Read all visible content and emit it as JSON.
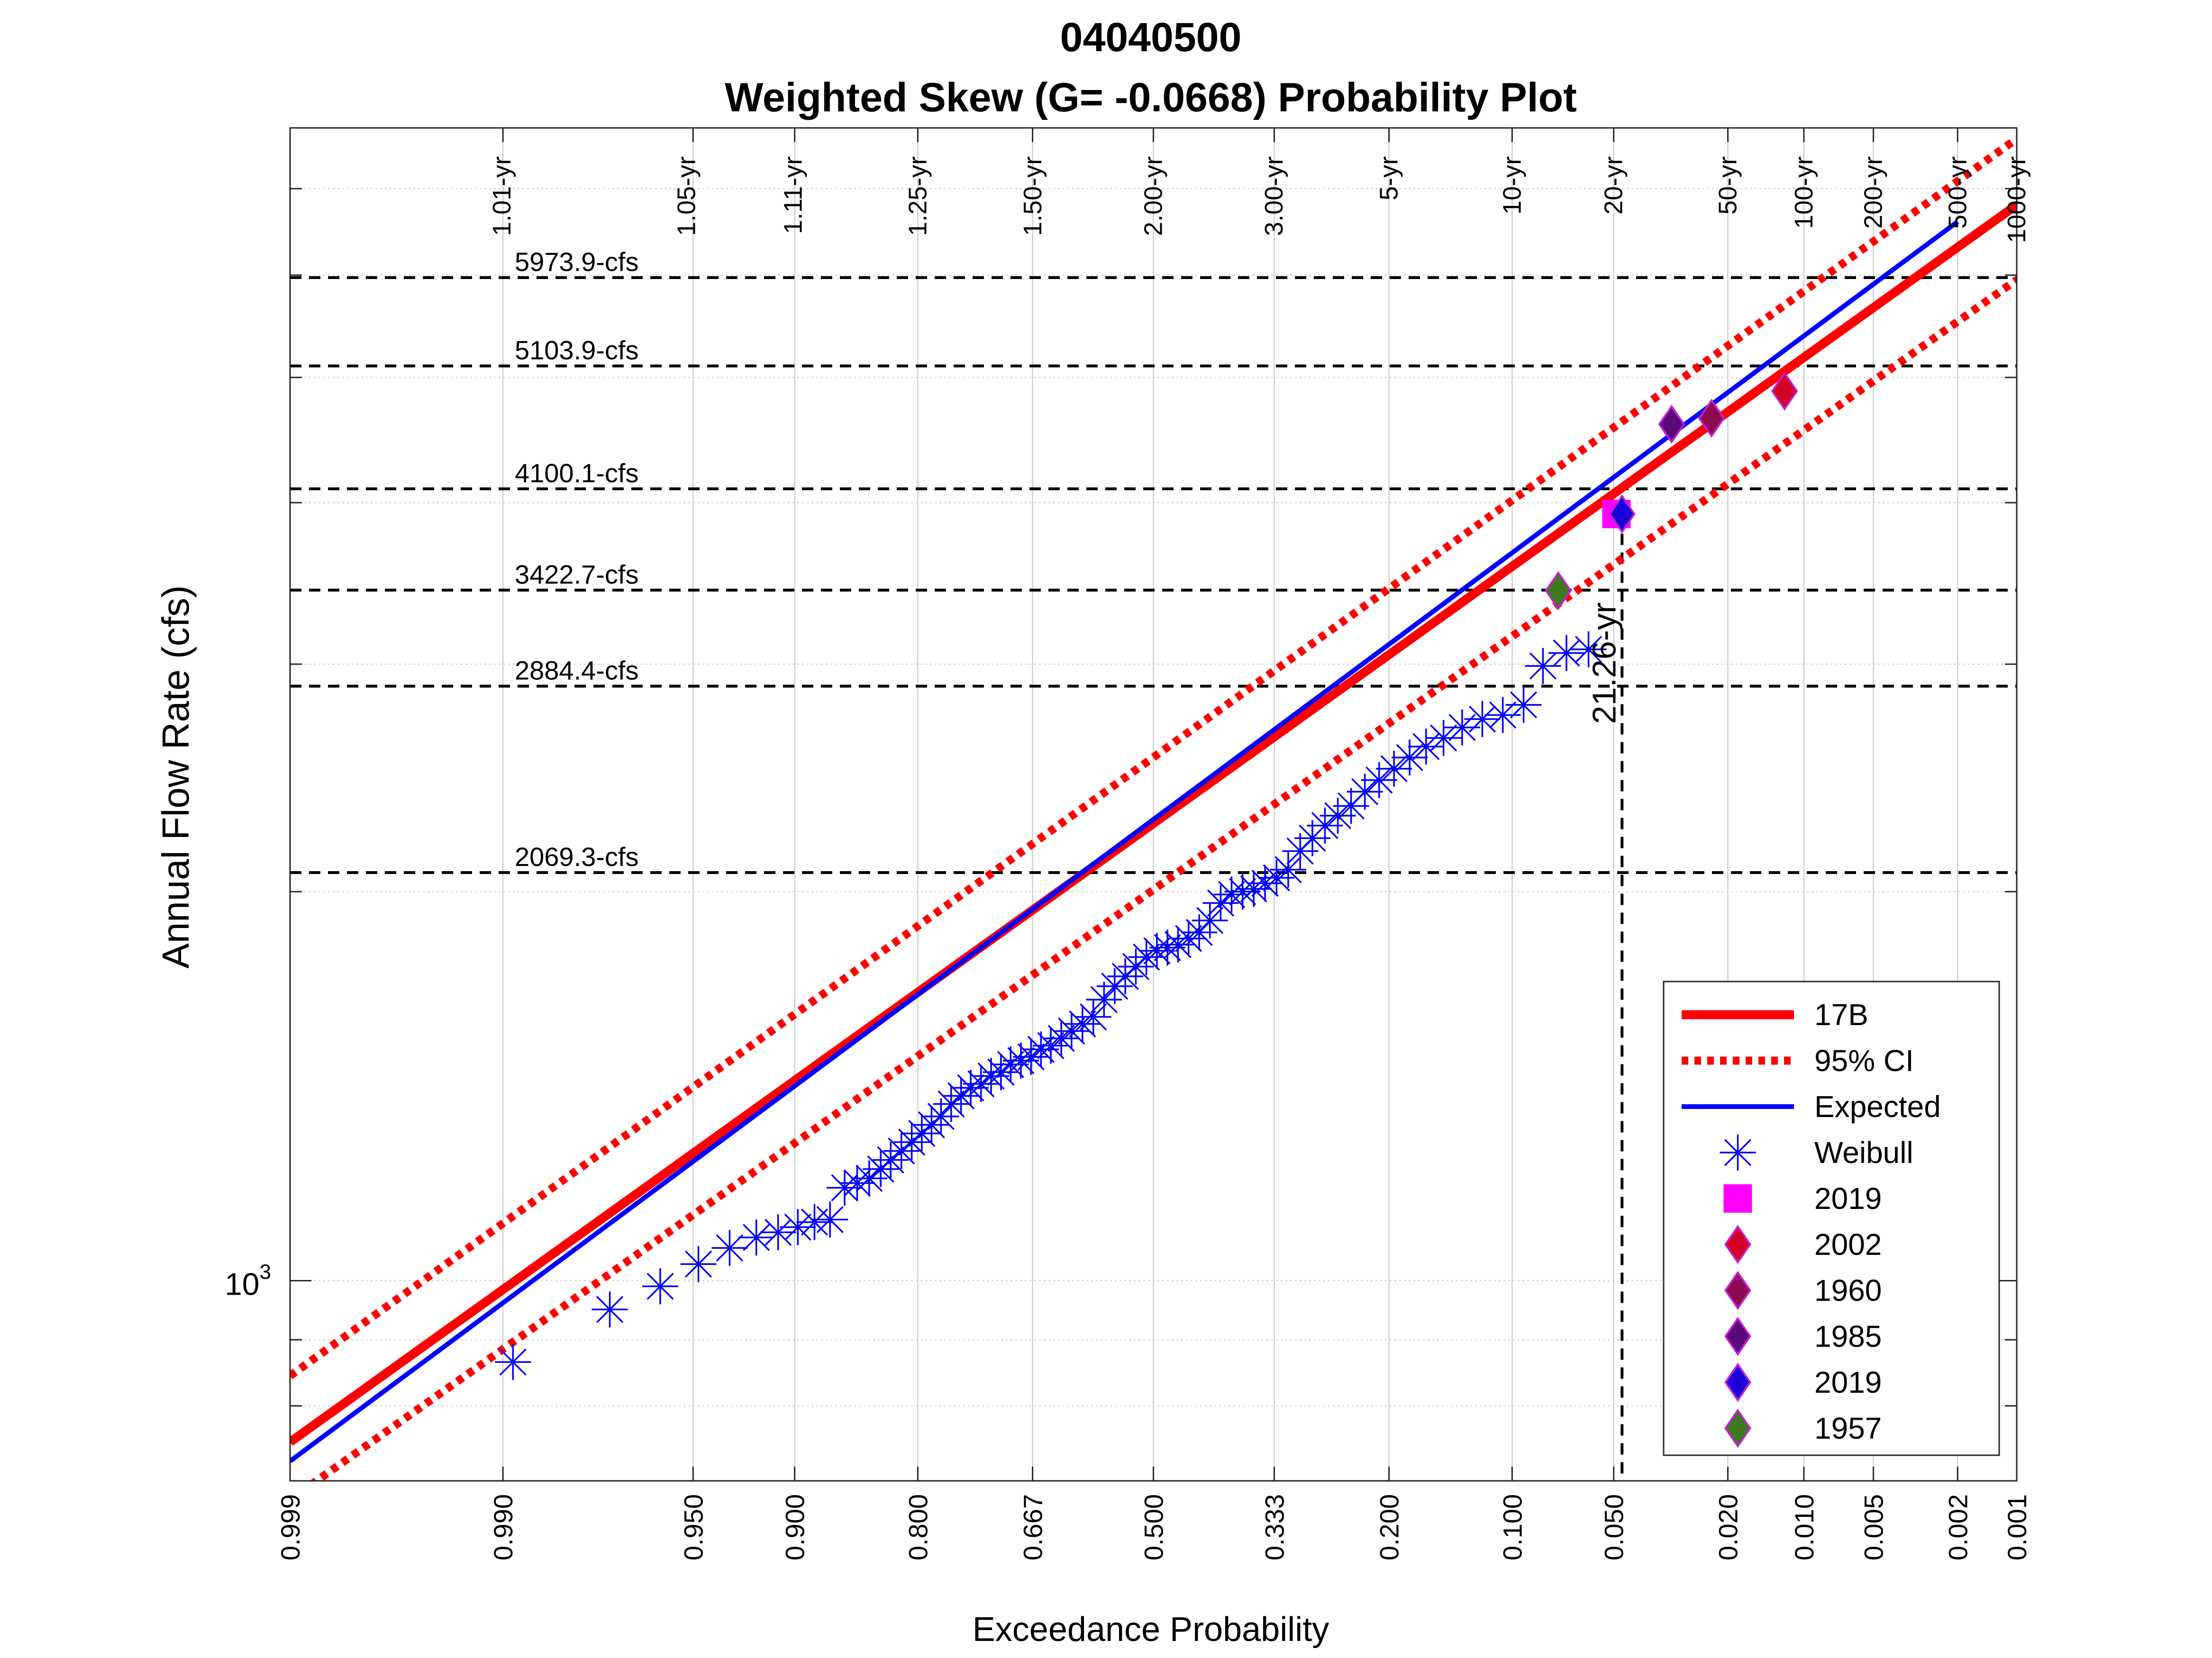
{
  "chart_data": {
    "type": "scatter",
    "title": "04040500",
    "subtitle": "Weighted Skew (G= -0.0668) Probability Plot",
    "xlabel": "Exceedance Probability",
    "ylabel": "Annual Flow Rate (cfs)",
    "y_scale": "log",
    "x_scale": "normal-probability-reversed",
    "xlim": [
      0.999,
      0.001
    ],
    "ylim": [
      700,
      7800
    ],
    "grid": true,
    "x_ticks": [
      {
        "p": 0.999,
        "label": "0.999"
      },
      {
        "p": 0.99,
        "label": "0.990"
      },
      {
        "p": 0.95,
        "label": "0.950"
      },
      {
        "p": 0.9,
        "label": "0.900"
      },
      {
        "p": 0.8,
        "label": "0.800"
      },
      {
        "p": 0.667,
        "label": "0.667"
      },
      {
        "p": 0.5,
        "label": "0.500"
      },
      {
        "p": 0.333,
        "label": "0.333"
      },
      {
        "p": 0.2,
        "label": "0.200"
      },
      {
        "p": 0.1,
        "label": "0.100"
      },
      {
        "p": 0.05,
        "label": "0.050"
      },
      {
        "p": 0.02,
        "label": "0.020"
      },
      {
        "p": 0.01,
        "label": "0.010"
      },
      {
        "p": 0.005,
        "label": "0.005"
      },
      {
        "p": 0.002,
        "label": "0.002"
      },
      {
        "p": 0.001,
        "label": "0.001"
      }
    ],
    "return_periods": [
      {
        "p": 0.990099,
        "label": "1.01-yr"
      },
      {
        "p": 0.952381,
        "label": "1.05-yr"
      },
      {
        "p": 0.900901,
        "label": "1.11-yr"
      },
      {
        "p": 0.8,
        "label": "1.25-yr"
      },
      {
        "p": 0.666667,
        "label": "1.50-yr"
      },
      {
        "p": 0.5,
        "label": "2.00-yr"
      },
      {
        "p": 0.333333,
        "label": "3.00-yr"
      },
      {
        "p": 0.2,
        "label": "5-yr"
      },
      {
        "p": 0.1,
        "label": "10-yr"
      },
      {
        "p": 0.05,
        "label": "20-yr"
      },
      {
        "p": 0.02,
        "label": "50-yr"
      },
      {
        "p": 0.01,
        "label": "100-yr"
      },
      {
        "p": 0.005,
        "label": "200-yr"
      },
      {
        "p": 0.002,
        "label": "500-yr"
      },
      {
        "p": 0.001,
        "label": "1000-yr"
      }
    ],
    "y_tick_label": {
      "value": 1000,
      "base": "10",
      "exponent": "3"
    },
    "flow_lines": [
      {
        "value": 5973.9,
        "label": "5973.9-cfs"
      },
      {
        "value": 5103.9,
        "label": "5103.9-cfs"
      },
      {
        "value": 4100.1,
        "label": "4100.1-cfs"
      },
      {
        "value": 3422.7,
        "label": "3422.7-cfs"
      },
      {
        "value": 2884.4,
        "label": "2884.4-cfs"
      },
      {
        "value": 2069.3,
        "label": "2069.3-cfs"
      }
    ],
    "vertical_marker": {
      "p": 0.047,
      "y_top": 4050,
      "label": "21.26-yr"
    },
    "series": [
      {
        "name": "17B",
        "color": "#ff0000",
        "style": "solid",
        "points": [
          [
            0.999,
            750
          ],
          [
            0.001,
            6800
          ]
        ]
      },
      {
        "name": "95% CI",
        "color": "#ff0000",
        "style": "dotted",
        "upper": [
          [
            0.999,
            844
          ],
          [
            0.001,
            7650
          ]
        ],
        "lower": [
          [
            0.999,
            677
          ],
          [
            0.001,
            5950
          ]
        ]
      },
      {
        "name": "Expected",
        "color": "#0000ff",
        "style": "solid",
        "points": [
          [
            0.999,
            725
          ],
          [
            0.002,
            6600
          ]
        ]
      },
      {
        "name": "Weibull",
        "color": "#0000ff",
        "marker": "asterisk",
        "points": [
          [
            0.989,
            865
          ],
          [
            0.974,
            950
          ],
          [
            0.961,
            990
          ],
          [
            0.948,
            1030
          ],
          [
            0.935,
            1060
          ],
          [
            0.922,
            1080
          ],
          [
            0.91,
            1090
          ],
          [
            0.898,
            1100
          ],
          [
            0.887,
            1110
          ],
          [
            0.876,
            1115
          ],
          [
            0.865,
            1180
          ],
          [
            0.855,
            1190
          ],
          [
            0.845,
            1200
          ],
          [
            0.835,
            1220
          ],
          [
            0.826,
            1240
          ],
          [
            0.816,
            1260
          ],
          [
            0.806,
            1280
          ],
          [
            0.796,
            1300
          ],
          [
            0.786,
            1320
          ],
          [
            0.776,
            1340
          ],
          [
            0.765,
            1370
          ],
          [
            0.754,
            1390
          ],
          [
            0.743,
            1410
          ],
          [
            0.731,
            1420
          ],
          [
            0.719,
            1440
          ],
          [
            0.707,
            1450
          ],
          [
            0.695,
            1470
          ],
          [
            0.682,
            1480
          ],
          [
            0.669,
            1490
          ],
          [
            0.656,
            1510
          ],
          [
            0.643,
            1520
          ],
          [
            0.629,
            1540
          ],
          [
            0.615,
            1560
          ],
          [
            0.6,
            1580
          ],
          [
            0.585,
            1600
          ],
          [
            0.57,
            1650
          ],
          [
            0.555,
            1690
          ],
          [
            0.54,
            1720
          ],
          [
            0.525,
            1750
          ],
          [
            0.51,
            1780
          ],
          [
            0.495,
            1800
          ],
          [
            0.48,
            1810
          ],
          [
            0.465,
            1820
          ],
          [
            0.45,
            1840
          ],
          [
            0.435,
            1860
          ],
          [
            0.42,
            1900
          ],
          [
            0.405,
            1960
          ],
          [
            0.39,
            1990
          ],
          [
            0.375,
            2000
          ],
          [
            0.36,
            2010
          ],
          [
            0.345,
            2030
          ],
          [
            0.33,
            2050
          ],
          [
            0.315,
            2080
          ],
          [
            0.3,
            2150
          ],
          [
            0.285,
            2200
          ],
          [
            0.27,
            2250
          ],
          [
            0.255,
            2290
          ],
          [
            0.24,
            2330
          ],
          [
            0.225,
            2390
          ],
          [
            0.21,
            2440
          ],
          [
            0.195,
            2490
          ],
          [
            0.18,
            2540
          ],
          [
            0.165,
            2590
          ],
          [
            0.15,
            2630
          ],
          [
            0.135,
            2680
          ],
          [
            0.12,
            2720
          ],
          [
            0.106,
            2740
          ],
          [
            0.093,
            2790
          ],
          [
            0.082,
            2990
          ],
          [
            0.07,
            3060
          ],
          [
            0.06,
            3080
          ]
        ]
      },
      {
        "name": "2019",
        "color": "#ff00ff",
        "marker": "square",
        "points": [
          [
            0.049,
            3920
          ]
        ]
      },
      {
        "name": "2002",
        "color": "#d40024",
        "marker": "diamond",
        "points": [
          [
            0.012,
            4880
          ]
        ]
      },
      {
        "name": "1960",
        "color": "#8b0a50",
        "marker": "diamond",
        "points": [
          [
            0.023,
            4650
          ]
        ]
      },
      {
        "name": "1985",
        "color": "#5a0a78",
        "marker": "diamond",
        "points": [
          [
            0.032,
            4600
          ]
        ]
      },
      {
        "name": "2019",
        "color": "#1a00d8",
        "marker": "diamond",
        "points": [
          [
            0.047,
            3920
          ]
        ]
      },
      {
        "name": "1957",
        "color": "#3c7a1e",
        "marker": "diamond",
        "points": [
          [
            0.074,
            3420
          ]
        ]
      }
    ],
    "legend": {
      "placement": "bottom-right",
      "entries": [
        "17B",
        "95% CI",
        "Expected",
        "Weibull",
        "2019",
        "2002",
        "1960",
        "1985",
        "2019",
        "1957"
      ]
    }
  }
}
